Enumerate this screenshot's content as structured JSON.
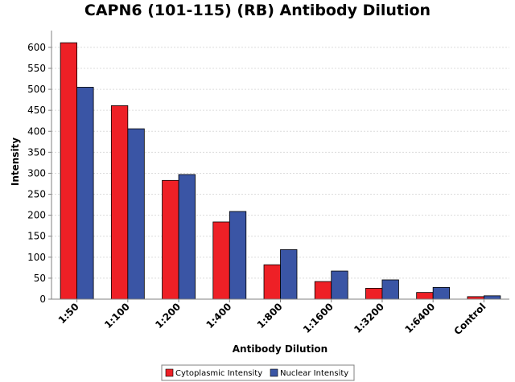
{
  "chart_data": {
    "type": "bar",
    "title": "CAPN6 (101-115) (RB) Antibody Dilution",
    "xlabel": "Antibody Dilution",
    "ylabel": "Intensity",
    "ylim": [
      0,
      640
    ],
    "yticks": [
      0,
      50,
      100,
      150,
      200,
      250,
      300,
      350,
      400,
      450,
      500,
      550,
      600
    ],
    "grid": true,
    "legend_position": "bottom-center",
    "categories": [
      "1:50",
      "1:100",
      "1:200",
      "1:400",
      "1:800",
      "1:1600",
      "1:3200",
      "1:6400",
      "Control"
    ],
    "series": [
      {
        "name": "Cytoplasmic Intensity",
        "color": "#ee2026",
        "values": [
          611,
          461,
          283,
          184,
          82,
          42,
          26,
          16,
          6
        ]
      },
      {
        "name": "Nuclear Intensity",
        "color": "#3a55a5",
        "values": [
          505,
          406,
          297,
          209,
          118,
          67,
          46,
          28,
          8
        ]
      }
    ]
  }
}
